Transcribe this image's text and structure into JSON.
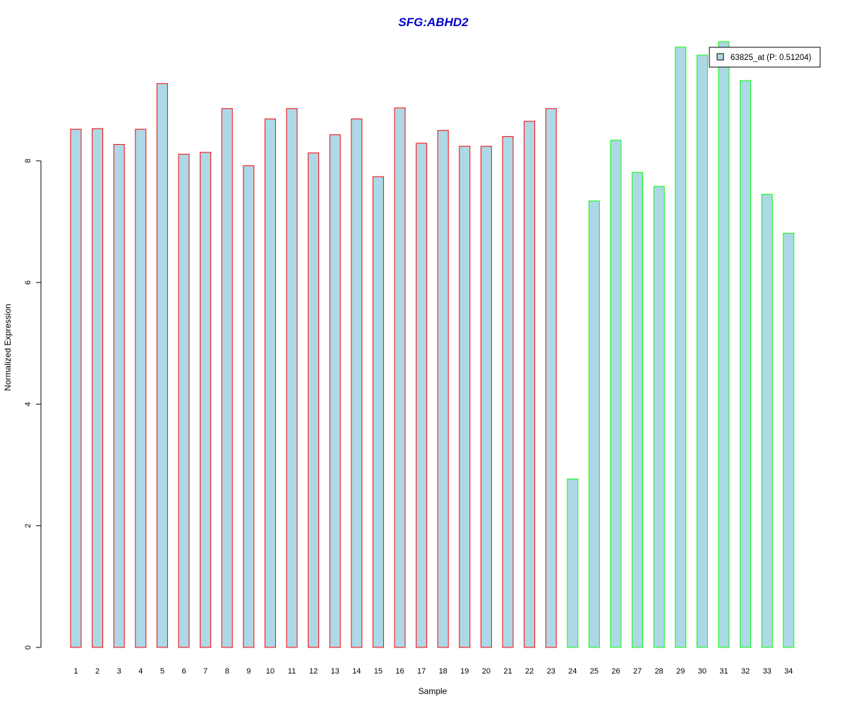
{
  "chart_data": {
    "type": "bar",
    "title": "SFG:ABHD2",
    "xlabel": "Sample",
    "ylabel": "Normalized Expression",
    "categories": [
      "1",
      "2",
      "3",
      "4",
      "5",
      "6",
      "7",
      "8",
      "9",
      "10",
      "11",
      "12",
      "13",
      "14",
      "15",
      "16",
      "17",
      "18",
      "19",
      "20",
      "21",
      "22",
      "23",
      "24",
      "25",
      "26",
      "27",
      "28",
      "29",
      "30",
      "31",
      "32",
      "33",
      "34"
    ],
    "values": [
      8.52,
      8.53,
      8.27,
      8.52,
      9.27,
      8.11,
      8.14,
      8.86,
      7.92,
      8.69,
      8.86,
      8.13,
      8.43,
      8.69,
      7.74,
      8.87,
      8.29,
      8.5,
      8.24,
      8.24,
      8.4,
      8.65,
      8.86,
      2.77,
      7.34,
      8.34,
      7.81,
      7.58,
      9.87,
      9.74,
      9.96,
      9.32,
      7.45,
      6.81
    ],
    "groups": [
      {
        "from": 1,
        "to": 23,
        "border_color": "#ff0000"
      },
      {
        "from": 24,
        "to": 34,
        "border_color": "#00ff00"
      }
    ],
    "bar_fill": "#add8e6",
    "yticks": [
      0,
      2,
      4,
      6,
      8
    ],
    "ylim": [
      0,
      9.96
    ],
    "grid": false,
    "legend": {
      "position": "top-right",
      "entries": [
        {
          "label": "63825_at (P: 0.51204)",
          "fill": "#add8e6"
        }
      ]
    }
  }
}
